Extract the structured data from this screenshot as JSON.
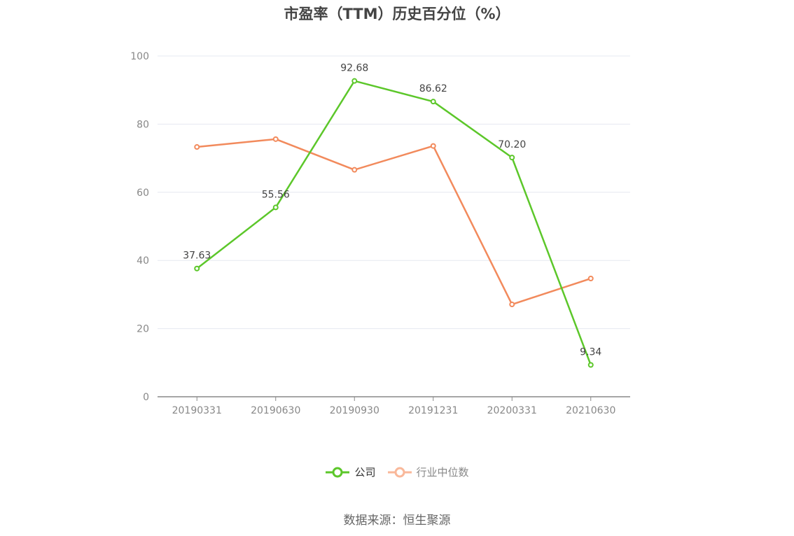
{
  "title": "市盈率（TTM）历史百分位（%）",
  "source": "数据来源：恒生聚源",
  "legend": {
    "company": "公司",
    "industry": "行业中位数"
  },
  "colors": {
    "company": "#5cc72a",
    "industry": "#f28a5c",
    "grid": "#e6e8f0",
    "axis": "#888888"
  },
  "chart_data": {
    "type": "line",
    "title": "市盈率（TTM）历史百分位（%）",
    "categories": [
      "20190331",
      "20190630",
      "20190930",
      "20191231",
      "20200331",
      "20210630"
    ],
    "y_ticks": [
      "0",
      "20",
      "40",
      "60",
      "80",
      "100"
    ],
    "ylim": [
      0,
      100
    ],
    "grid": true,
    "legend_position": "bottom",
    "series": [
      {
        "name": "公司",
        "values": [
          37.63,
          55.56,
          92.68,
          86.62,
          70.2,
          9.34
        ],
        "labels": [
          "37.63",
          "55.56",
          "92.68",
          "86.62",
          "70.20",
          "9.34"
        ]
      },
      {
        "name": "行业中位数",
        "values": [
          73.3,
          75.6,
          66.6,
          73.6,
          27.1,
          34.7
        ]
      }
    ]
  }
}
